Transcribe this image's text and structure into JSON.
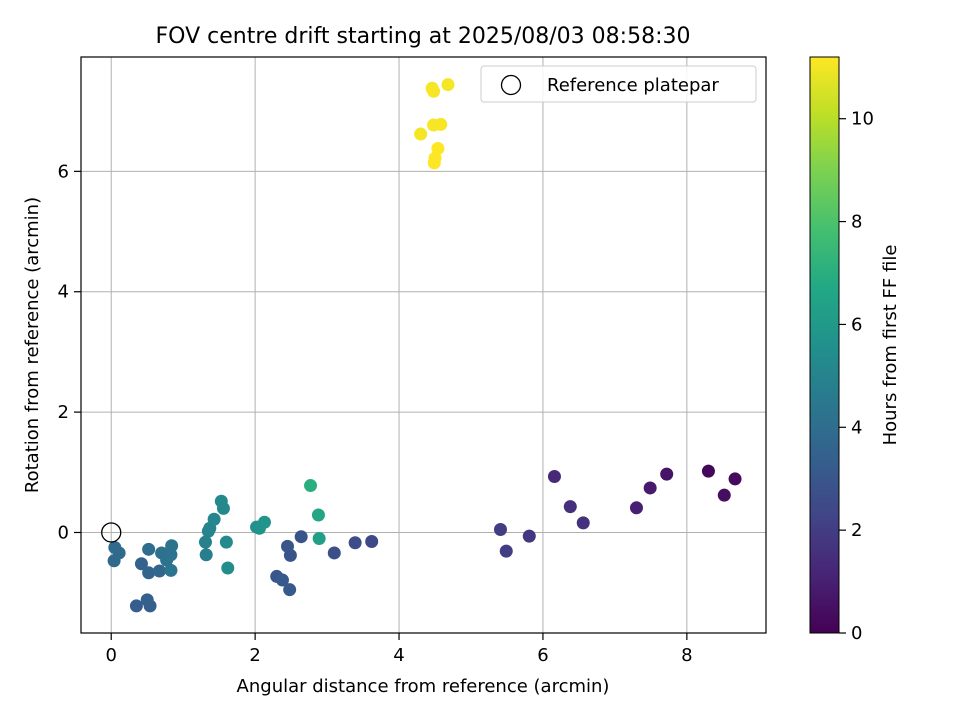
{
  "chart_data": {
    "type": "scatter",
    "title": "FOV centre drift starting at 2025/08/03 08:58:30",
    "xlabel": "Angular distance from reference (arcmin)",
    "ylabel": "Rotation from reference (arcmin)",
    "xlim": [
      -0.42,
      9.1
    ],
    "ylim": [
      -1.67,
      7.9
    ],
    "xticks": [
      0,
      2,
      4,
      6,
      8
    ],
    "yticks": [
      0,
      2,
      4,
      6
    ],
    "grid": true,
    "legend": {
      "position": "top-right",
      "entries": [
        "Reference platepar"
      ]
    },
    "reference_point": {
      "x": 0,
      "y": 0,
      "label": "Reference platepar"
    },
    "colorbar": {
      "label": "Hours from first FF file",
      "range": [
        0,
        11.2
      ],
      "ticks": [
        0,
        2,
        4,
        6,
        8,
        10
      ],
      "colormap": "viridis"
    },
    "points": [
      {
        "x": 8.3,
        "y": 1.02,
        "c": 0.2
      },
      {
        "x": 8.67,
        "y": 0.89,
        "c": 0.3
      },
      {
        "x": 8.52,
        "y": 0.62,
        "c": 0.4
      },
      {
        "x": 7.72,
        "y": 0.97,
        "c": 0.6
      },
      {
        "x": 7.49,
        "y": 0.74,
        "c": 0.8
      },
      {
        "x": 7.3,
        "y": 0.41,
        "c": 1.0
      },
      {
        "x": 6.16,
        "y": 0.93,
        "c": 1.3
      },
      {
        "x": 6.38,
        "y": 0.43,
        "c": 1.5
      },
      {
        "x": 6.56,
        "y": 0.16,
        "c": 1.6
      },
      {
        "x": 5.81,
        "y": -0.06,
        "c": 1.8
      },
      {
        "x": 5.41,
        "y": 0.05,
        "c": 2.0
      },
      {
        "x": 5.49,
        "y": -0.31,
        "c": 2.0
      },
      {
        "x": 3.62,
        "y": -0.15,
        "c": 2.5
      },
      {
        "x": 3.39,
        "y": -0.17,
        "c": 2.6
      },
      {
        "x": 3.1,
        "y": -0.34,
        "c": 2.7
      },
      {
        "x": 2.64,
        "y": -0.07,
        "c": 2.9
      },
      {
        "x": 2.49,
        "y": -0.38,
        "c": 2.9
      },
      {
        "x": 2.45,
        "y": -0.23,
        "c": 3.0
      },
      {
        "x": 2.3,
        "y": -0.73,
        "c": 3.0
      },
      {
        "x": 2.38,
        "y": -0.79,
        "c": 3.1
      },
      {
        "x": 2.48,
        "y": -0.95,
        "c": 3.1
      },
      {
        "x": 0.35,
        "y": -1.22,
        "c": 3.3
      },
      {
        "x": 0.5,
        "y": -1.12,
        "c": 3.4
      },
      {
        "x": 0.54,
        "y": -1.22,
        "c": 3.4
      },
      {
        "x": 0.42,
        "y": -0.52,
        "c": 3.5
      },
      {
        "x": 0.52,
        "y": -0.67,
        "c": 3.6
      },
      {
        "x": 0.67,
        "y": -0.64,
        "c": 3.7
      },
      {
        "x": 0.04,
        "y": -0.47,
        "c": 3.8
      },
      {
        "x": 0.11,
        "y": -0.34,
        "c": 3.9
      },
      {
        "x": 0.05,
        "y": -0.25,
        "c": 3.9
      },
      {
        "x": 0.52,
        "y": -0.28,
        "c": 4.0
      },
      {
        "x": 0.7,
        "y": -0.34,
        "c": 4.1
      },
      {
        "x": 0.77,
        "y": -0.46,
        "c": 4.2
      },
      {
        "x": 0.83,
        "y": -0.37,
        "c": 4.2
      },
      {
        "x": 0.84,
        "y": -0.22,
        "c": 4.3
      },
      {
        "x": 0.83,
        "y": -0.63,
        "c": 4.4
      },
      {
        "x": 1.32,
        "y": -0.37,
        "c": 4.8
      },
      {
        "x": 1.31,
        "y": -0.16,
        "c": 4.9
      },
      {
        "x": 1.35,
        "y": 0.02,
        "c": 5.0
      },
      {
        "x": 1.37,
        "y": 0.07,
        "c": 5.0
      },
      {
        "x": 1.43,
        "y": 0.22,
        "c": 5.1
      },
      {
        "x": 1.53,
        "y": 0.52,
        "c": 5.2
      },
      {
        "x": 1.56,
        "y": 0.4,
        "c": 5.2
      },
      {
        "x": 1.6,
        "y": -0.16,
        "c": 5.3
      },
      {
        "x": 1.62,
        "y": -0.59,
        "c": 5.4
      },
      {
        "x": 2.02,
        "y": 0.09,
        "c": 5.6
      },
      {
        "x": 2.06,
        "y": 0.07,
        "c": 5.7
      },
      {
        "x": 2.13,
        "y": 0.17,
        "c": 5.8
      },
      {
        "x": 2.89,
        "y": -0.1,
        "c": 6.3
      },
      {
        "x": 2.88,
        "y": 0.29,
        "c": 6.6
      },
      {
        "x": 2.77,
        "y": 0.78,
        "c": 7.0
      },
      {
        "x": 4.3,
        "y": 6.62,
        "c": 11.0
      },
      {
        "x": 4.46,
        "y": 7.38,
        "c": 11.0
      },
      {
        "x": 4.48,
        "y": 7.33,
        "c": 11.1
      },
      {
        "x": 4.68,
        "y": 7.44,
        "c": 11.1
      },
      {
        "x": 4.48,
        "y": 6.77,
        "c": 11.1
      },
      {
        "x": 4.58,
        "y": 6.78,
        "c": 11.1
      },
      {
        "x": 4.54,
        "y": 6.38,
        "c": 11.2
      },
      {
        "x": 4.5,
        "y": 6.22,
        "c": 11.2
      },
      {
        "x": 4.49,
        "y": 6.14,
        "c": 11.2
      }
    ]
  }
}
